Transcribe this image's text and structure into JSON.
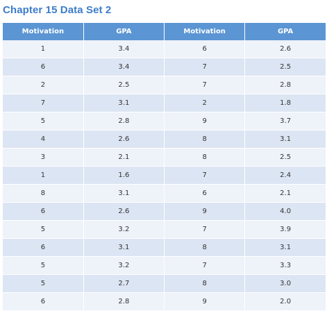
{
  "title": "Chapter 15 Data Set 2",
  "table": {
    "headers": [
      "Motivation",
      "GPA",
      "Motivation",
      "GPA"
    ],
    "rows": [
      [
        "1",
        "3.4",
        "6",
        "2.6"
      ],
      [
        "6",
        "3.4",
        "7",
        "2.5"
      ],
      [
        "2",
        "2.5",
        "7",
        "2.8"
      ],
      [
        "7",
        "3.1",
        "2",
        "1.8"
      ],
      [
        "5",
        "2.8",
        "9",
        "3.7"
      ],
      [
        "4",
        "2.6",
        "8",
        "3.1"
      ],
      [
        "3",
        "2.1",
        "8",
        "2.5"
      ],
      [
        "1",
        "1.6",
        "7",
        "2.4"
      ],
      [
        "8",
        "3.1",
        "6",
        "2.1"
      ],
      [
        "6",
        "2.6",
        "9",
        "4.0"
      ],
      [
        "5",
        "3.2",
        "7",
        "3.9"
      ],
      [
        "6",
        "3.1",
        "8",
        "3.1"
      ],
      [
        "5",
        "3.2",
        "7",
        "3.3"
      ],
      [
        "5",
        "2.7",
        "8",
        "3.0"
      ],
      [
        "6",
        "2.8",
        "9",
        "2.0"
      ]
    ]
  },
  "colors": {
    "title": "#3d7cc9",
    "header_bg": "#5b95d3",
    "row_light": "#eef2f9",
    "row_dark": "#dce5f3"
  }
}
